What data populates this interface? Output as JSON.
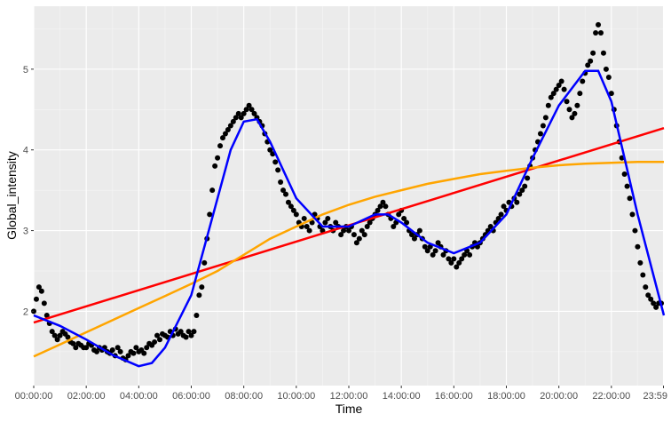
{
  "chart_data": {
    "type": "scatter",
    "xlabel": "Time",
    "ylabel": "Global_intensity",
    "xlim_hours": [
      0,
      24
    ],
    "ylim": [
      1.08,
      5.78
    ],
    "x_ticks": [
      {
        "hour": 0,
        "label": "00:00:00"
      },
      {
        "hour": 2,
        "label": "02:00:00"
      },
      {
        "hour": 4,
        "label": "04:00:00"
      },
      {
        "hour": 6,
        "label": "06:00:00"
      },
      {
        "hour": 8,
        "label": "08:00:00"
      },
      {
        "hour": 10,
        "label": "10:00:00"
      },
      {
        "hour": 12,
        "label": "12:00:00"
      },
      {
        "hour": 14,
        "label": "14:00:00"
      },
      {
        "hour": 16,
        "label": "16:00:00"
      },
      {
        "hour": 18,
        "label": "18:00:00"
      },
      {
        "hour": 20,
        "label": "20:00:00"
      },
      {
        "hour": 22,
        "label": "22:00:00"
      },
      {
        "hour": 23.983,
        "label": "23:59"
      }
    ],
    "y_ticks": [
      2,
      3,
      4,
      5
    ],
    "grid": true,
    "background": "#ebebeb",
    "scatter": {
      "color": "#000000",
      "points": [
        [
          0.0,
          2.0
        ],
        [
          0.1,
          2.15
        ],
        [
          0.2,
          2.3
        ],
        [
          0.3,
          2.25
        ],
        [
          0.4,
          2.1
        ],
        [
          0.5,
          1.95
        ],
        [
          0.6,
          1.85
        ],
        [
          0.7,
          1.75
        ],
        [
          0.8,
          1.7
        ],
        [
          0.9,
          1.65
        ],
        [
          1.0,
          1.7
        ],
        [
          1.1,
          1.75
        ],
        [
          1.2,
          1.72
        ],
        [
          1.3,
          1.68
        ],
        [
          1.4,
          1.62
        ],
        [
          1.5,
          1.6
        ],
        [
          1.6,
          1.55
        ],
        [
          1.7,
          1.6
        ],
        [
          1.8,
          1.58
        ],
        [
          1.9,
          1.55
        ],
        [
          2.0,
          1.55
        ],
        [
          2.1,
          1.6
        ],
        [
          2.2,
          1.58
        ],
        [
          2.3,
          1.52
        ],
        [
          2.4,
          1.5
        ],
        [
          2.5,
          1.55
        ],
        [
          2.6,
          1.52
        ],
        [
          2.7,
          1.55
        ],
        [
          2.8,
          1.5
        ],
        [
          2.9,
          1.48
        ],
        [
          3.0,
          1.52
        ],
        [
          3.1,
          1.45
        ],
        [
          3.2,
          1.55
        ],
        [
          3.3,
          1.5
        ],
        [
          3.4,
          1.42
        ],
        [
          3.5,
          1.4
        ],
        [
          3.6,
          1.45
        ],
        [
          3.7,
          1.5
        ],
        [
          3.8,
          1.48
        ],
        [
          3.9,
          1.55
        ],
        [
          4.0,
          1.5
        ],
        [
          4.1,
          1.52
        ],
        [
          4.2,
          1.48
        ],
        [
          4.3,
          1.55
        ],
        [
          4.4,
          1.6
        ],
        [
          4.5,
          1.58
        ],
        [
          4.6,
          1.62
        ],
        [
          4.7,
          1.7
        ],
        [
          4.8,
          1.65
        ],
        [
          4.9,
          1.72
        ],
        [
          5.0,
          1.7
        ],
        [
          5.1,
          1.68
        ],
        [
          5.2,
          1.75
        ],
        [
          5.3,
          1.7
        ],
        [
          5.4,
          1.78
        ],
        [
          5.5,
          1.72
        ],
        [
          5.6,
          1.75
        ],
        [
          5.7,
          1.7
        ],
        [
          5.8,
          1.68
        ],
        [
          5.9,
          1.75
        ],
        [
          6.0,
          1.7
        ],
        [
          6.1,
          1.75
        ],
        [
          6.2,
          1.95
        ],
        [
          6.3,
          2.2
        ],
        [
          6.4,
          2.3
        ],
        [
          6.5,
          2.6
        ],
        [
          6.6,
          2.9
        ],
        [
          6.7,
          3.2
        ],
        [
          6.8,
          3.5
        ],
        [
          6.9,
          3.8
        ],
        [
          7.0,
          3.9
        ],
        [
          7.1,
          4.05
        ],
        [
          7.2,
          4.15
        ],
        [
          7.3,
          4.2
        ],
        [
          7.4,
          4.25
        ],
        [
          7.5,
          4.3
        ],
        [
          7.6,
          4.35
        ],
        [
          7.7,
          4.4
        ],
        [
          7.8,
          4.45
        ],
        [
          7.9,
          4.4
        ],
        [
          8.0,
          4.45
        ],
        [
          8.1,
          4.5
        ],
        [
          8.2,
          4.55
        ],
        [
          8.3,
          4.5
        ],
        [
          8.4,
          4.45
        ],
        [
          8.5,
          4.4
        ],
        [
          8.6,
          4.35
        ],
        [
          8.7,
          4.3
        ],
        [
          8.8,
          4.2
        ],
        [
          8.9,
          4.1
        ],
        [
          9.0,
          4.0
        ],
        [
          9.1,
          3.95
        ],
        [
          9.2,
          3.85
        ],
        [
          9.3,
          3.75
        ],
        [
          9.4,
          3.6
        ],
        [
          9.5,
          3.5
        ],
        [
          9.6,
          3.45
        ],
        [
          9.7,
          3.35
        ],
        [
          9.8,
          3.3
        ],
        [
          9.9,
          3.25
        ],
        [
          10.0,
          3.2
        ],
        [
          10.1,
          3.1
        ],
        [
          10.2,
          3.05
        ],
        [
          10.3,
          3.15
        ],
        [
          10.4,
          3.05
        ],
        [
          10.5,
          3.0
        ],
        [
          10.6,
          3.1
        ],
        [
          10.7,
          3.2
        ],
        [
          10.8,
          3.15
        ],
        [
          10.9,
          3.05
        ],
        [
          11.0,
          3.0
        ],
        [
          11.1,
          3.1
        ],
        [
          11.2,
          3.15
        ],
        [
          11.3,
          3.05
        ],
        [
          11.4,
          3.0
        ],
        [
          11.5,
          3.1
        ],
        [
          11.6,
          3.05
        ],
        [
          11.7,
          2.95
        ],
        [
          11.8,
          3.0
        ],
        [
          11.9,
          3.05
        ],
        [
          12.0,
          3.0
        ],
        [
          12.1,
          3.05
        ],
        [
          12.2,
          2.95
        ],
        [
          12.3,
          2.85
        ],
        [
          12.4,
          2.9
        ],
        [
          12.5,
          3.0
        ],
        [
          12.6,
          2.95
        ],
        [
          12.7,
          3.05
        ],
        [
          12.8,
          3.1
        ],
        [
          12.9,
          3.15
        ],
        [
          13.0,
          3.2
        ],
        [
          13.1,
          3.25
        ],
        [
          13.2,
          3.3
        ],
        [
          13.3,
          3.35
        ],
        [
          13.4,
          3.3
        ],
        [
          13.5,
          3.2
        ],
        [
          13.6,
          3.15
        ],
        [
          13.7,
          3.05
        ],
        [
          13.8,
          3.1
        ],
        [
          13.9,
          3.2
        ],
        [
          14.0,
          3.25
        ],
        [
          14.1,
          3.15
        ],
        [
          14.2,
          3.1
        ],
        [
          14.3,
          3.0
        ],
        [
          14.4,
          2.95
        ],
        [
          14.5,
          2.9
        ],
        [
          14.6,
          2.95
        ],
        [
          14.7,
          3.0
        ],
        [
          14.8,
          2.9
        ],
        [
          14.9,
          2.8
        ],
        [
          15.0,
          2.75
        ],
        [
          15.1,
          2.8
        ],
        [
          15.2,
          2.7
        ],
        [
          15.3,
          2.75
        ],
        [
          15.4,
          2.85
        ],
        [
          15.5,
          2.8
        ],
        [
          15.6,
          2.7
        ],
        [
          15.7,
          2.75
        ],
        [
          15.8,
          2.65
        ],
        [
          15.9,
          2.6
        ],
        [
          16.0,
          2.65
        ],
        [
          16.1,
          2.55
        ],
        [
          16.2,
          2.6
        ],
        [
          16.3,
          2.65
        ],
        [
          16.4,
          2.7
        ],
        [
          16.5,
          2.75
        ],
        [
          16.6,
          2.7
        ],
        [
          16.7,
          2.8
        ],
        [
          16.8,
          2.85
        ],
        [
          16.9,
          2.8
        ],
        [
          17.0,
          2.85
        ],
        [
          17.1,
          2.9
        ],
        [
          17.2,
          2.95
        ],
        [
          17.3,
          3.0
        ],
        [
          17.4,
          3.05
        ],
        [
          17.5,
          3.0
        ],
        [
          17.6,
          3.1
        ],
        [
          17.7,
          3.15
        ],
        [
          17.8,
          3.2
        ],
        [
          17.9,
          3.3
        ],
        [
          18.0,
          3.25
        ],
        [
          18.1,
          3.35
        ],
        [
          18.2,
          3.3
        ],
        [
          18.3,
          3.4
        ],
        [
          18.4,
          3.35
        ],
        [
          18.5,
          3.45
        ],
        [
          18.6,
          3.5
        ],
        [
          18.7,
          3.55
        ],
        [
          18.8,
          3.65
        ],
        [
          18.9,
          3.8
        ],
        [
          19.0,
          3.9
        ],
        [
          19.1,
          4.0
        ],
        [
          19.2,
          4.1
        ],
        [
          19.3,
          4.2
        ],
        [
          19.4,
          4.3
        ],
        [
          19.5,
          4.4
        ],
        [
          19.6,
          4.55
        ],
        [
          19.7,
          4.65
        ],
        [
          19.8,
          4.7
        ],
        [
          19.9,
          4.75
        ],
        [
          20.0,
          4.8
        ],
        [
          20.1,
          4.85
        ],
        [
          20.2,
          4.75
        ],
        [
          20.3,
          4.6
        ],
        [
          20.4,
          4.5
        ],
        [
          20.5,
          4.4
        ],
        [
          20.6,
          4.45
        ],
        [
          20.7,
          4.55
        ],
        [
          20.8,
          4.7
        ],
        [
          20.9,
          4.85
        ],
        [
          21.0,
          4.95
        ],
        [
          21.1,
          5.05
        ],
        [
          21.2,
          5.1
        ],
        [
          21.3,
          5.2
        ],
        [
          21.4,
          5.45
        ],
        [
          21.5,
          5.55
        ],
        [
          21.6,
          5.45
        ],
        [
          21.7,
          5.2
        ],
        [
          21.8,
          5.0
        ],
        [
          21.9,
          4.9
        ],
        [
          22.0,
          4.7
        ],
        [
          22.1,
          4.5
        ],
        [
          22.2,
          4.3
        ],
        [
          22.3,
          4.1
        ],
        [
          22.4,
          3.9
        ],
        [
          22.5,
          3.7
        ],
        [
          22.6,
          3.55
        ],
        [
          22.7,
          3.4
        ],
        [
          22.8,
          3.2
        ],
        [
          22.9,
          3.0
        ],
        [
          23.0,
          2.8
        ],
        [
          23.1,
          2.6
        ],
        [
          23.2,
          2.45
        ],
        [
          23.3,
          2.3
        ],
        [
          23.4,
          2.2
        ],
        [
          23.5,
          2.15
        ],
        [
          23.6,
          2.1
        ],
        [
          23.7,
          2.05
        ],
        [
          23.8,
          2.1
        ],
        [
          23.9,
          2.1
        ]
      ]
    },
    "series": [
      {
        "color": "#ff0000",
        "values": [
          [
            0,
            1.86
          ],
          [
            24,
            4.27
          ]
        ]
      },
      {
        "color": "#ffa500",
        "values": [
          [
            0,
            1.44
          ],
          [
            1,
            1.59
          ],
          [
            2,
            1.74
          ],
          [
            3,
            1.89
          ],
          [
            4,
            2.04
          ],
          [
            5,
            2.19
          ],
          [
            6,
            2.34
          ],
          [
            7,
            2.5
          ],
          [
            8,
            2.7
          ],
          [
            9,
            2.9
          ],
          [
            10,
            3.05
          ],
          [
            11,
            3.2
          ],
          [
            12,
            3.32
          ],
          [
            13,
            3.42
          ],
          [
            14,
            3.5
          ],
          [
            15,
            3.58
          ],
          [
            16,
            3.64
          ],
          [
            17,
            3.7
          ],
          [
            18,
            3.74
          ],
          [
            19,
            3.78
          ],
          [
            20,
            3.81
          ],
          [
            21,
            3.83
          ],
          [
            22,
            3.84
          ],
          [
            23,
            3.85
          ],
          [
            24,
            3.85
          ]
        ]
      },
      {
        "color": "#0000ff",
        "values": [
          [
            0,
            1.95
          ],
          [
            1,
            1.82
          ],
          [
            2,
            1.65
          ],
          [
            3,
            1.46
          ],
          [
            4,
            1.32
          ],
          [
            4.5,
            1.36
          ],
          [
            5,
            1.55
          ],
          [
            6,
            2.2
          ],
          [
            6.5,
            2.8
          ],
          [
            7,
            3.4
          ],
          [
            7.5,
            4.0
          ],
          [
            8,
            4.35
          ],
          [
            8.5,
            4.38
          ],
          [
            9,
            4.1
          ],
          [
            10,
            3.4
          ],
          [
            11,
            3.05
          ],
          [
            12,
            3.05
          ],
          [
            13,
            3.2
          ],
          [
            13.5,
            3.2
          ],
          [
            14,
            3.1
          ],
          [
            15,
            2.85
          ],
          [
            16,
            2.72
          ],
          [
            17,
            2.85
          ],
          [
            18,
            3.2
          ],
          [
            19,
            3.9
          ],
          [
            20,
            4.55
          ],
          [
            21,
            4.98
          ],
          [
            21.5,
            4.98
          ],
          [
            22,
            4.6
          ],
          [
            22.5,
            3.9
          ],
          [
            23,
            3.2
          ],
          [
            24,
            1.95
          ]
        ]
      }
    ]
  }
}
